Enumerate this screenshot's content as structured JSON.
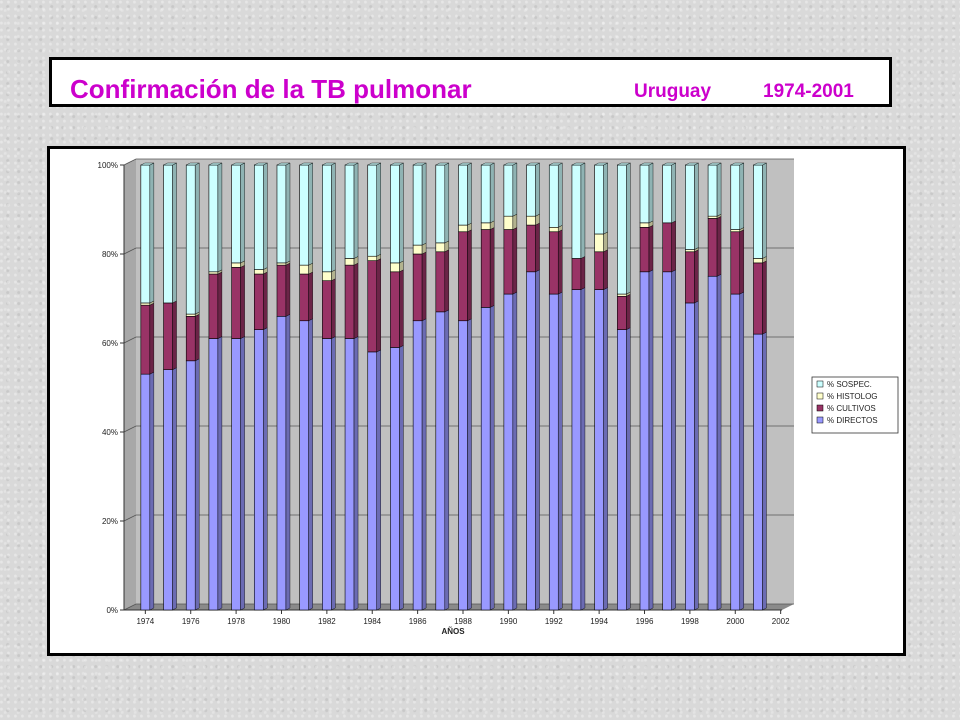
{
  "title": {
    "main": "Confirmación de la TB pulmonar",
    "country": "Uruguay",
    "years": "1974-2001"
  },
  "chart_data": {
    "type": "bar",
    "stacked": true,
    "percent": true,
    "xlabel": "AÑOS",
    "ylabel": "",
    "ylim": [
      0,
      100
    ],
    "y_ticks": [
      "0%",
      "20%",
      "40%",
      "60%",
      "80%",
      "100%"
    ],
    "x_tick_labels": [
      "1974",
      "1976",
      "1978",
      "1980",
      "1982",
      "1984",
      "1986",
      "1988",
      "1990",
      "1992",
      "1994",
      "1996",
      "1998",
      "2000",
      "2002"
    ],
    "categories": [
      1974,
      1975,
      1976,
      1977,
      1978,
      1979,
      1980,
      1981,
      1982,
      1983,
      1984,
      1985,
      1986,
      1987,
      1988,
      1989,
      1990,
      1991,
      1992,
      1993,
      1994,
      1995,
      1996,
      1997,
      1998,
      1999,
      2000,
      2001
    ],
    "grid": true,
    "legend_position": "right",
    "series": [
      {
        "name": "% DIRECTOS",
        "color": "#9999ff",
        "values": [
          53,
          54,
          56,
          61,
          61,
          63,
          66,
          65,
          61,
          61,
          58,
          59,
          65,
          67,
          65,
          68,
          71,
          76,
          71,
          72,
          72,
          63,
          76,
          76,
          69,
          75,
          71,
          62
        ]
      },
      {
        "name": "% CULTIVOS",
        "color": "#993366",
        "values": [
          15.5,
          15,
          10,
          14.5,
          16,
          12.5,
          11.5,
          10.5,
          13,
          16.5,
          20.5,
          17,
          15,
          13.5,
          20,
          17.5,
          14.5,
          10.5,
          14,
          7,
          8.5,
          7.5,
          10,
          11,
          11.5,
          13,
          14,
          16
        ]
      },
      {
        "name": "% HISTOLOG",
        "color": "#ffffcc",
        "values": [
          0.5,
          0,
          0.5,
          0.5,
          1,
          1,
          0.5,
          2,
          2,
          1.5,
          1,
          2,
          2,
          2,
          1.5,
          1.5,
          3,
          2,
          1,
          0,
          4,
          0.5,
          1,
          0,
          0.5,
          0.5,
          0.5,
          1
        ]
      },
      {
        "name": "% SOSPEC.",
        "color": "#ccffff",
        "values": [
          31,
          31,
          33.5,
          24,
          22,
          23.5,
          22,
          22.5,
          24,
          21,
          20.5,
          22,
          18,
          17.5,
          13.5,
          13,
          11.5,
          11.5,
          14,
          21,
          15.5,
          29,
          13,
          13,
          19,
          11.5,
          14.5,
          21
        ]
      }
    ]
  }
}
